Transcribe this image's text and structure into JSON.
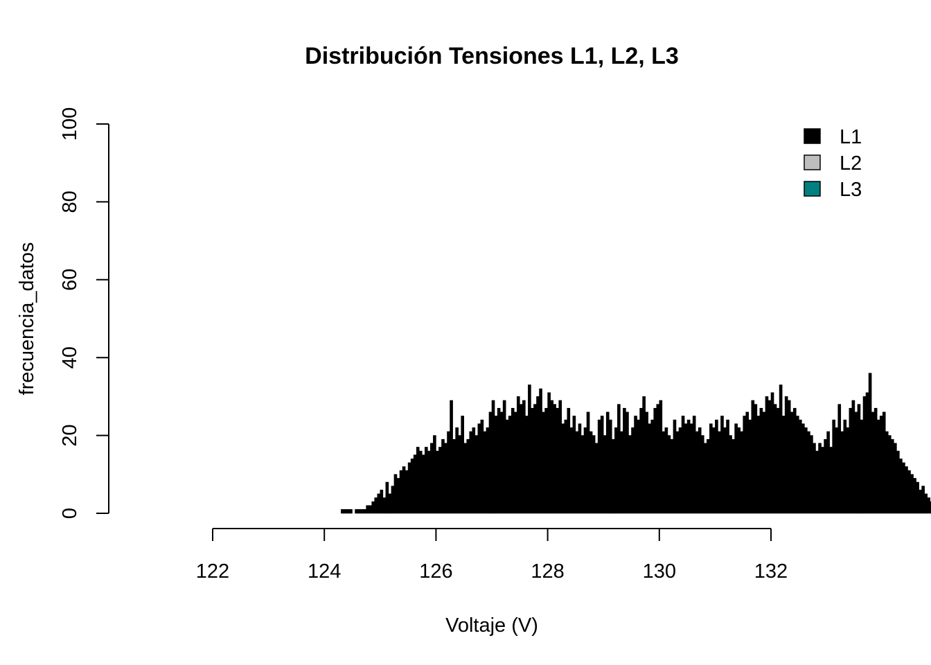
{
  "chart_data": {
    "type": "bar",
    "title": "Distribución Tensiones L1, L2, L3",
    "xlabel": "Voltaje (V)",
    "ylabel": "frecuencia_datos",
    "xlim": [
      122,
      132
    ],
    "ylim": [
      0,
      100
    ],
    "x_ticks": [
      "122",
      "124",
      "126",
      "128",
      "130",
      "132"
    ],
    "y_ticks": [
      "0",
      "20",
      "40",
      "60",
      "80",
      "100"
    ],
    "bin_width": 0.05,
    "grid": false,
    "legend_position": "top-right",
    "legend": [
      {
        "label": "L1",
        "color": "#000000"
      },
      {
        "label": "L2",
        "color": "#bebebe"
      },
      {
        "label": "L3",
        "color": "#008080"
      }
    ],
    "series": [
      {
        "name": "L1",
        "color": "#000000",
        "x_start": 124.3,
        "values": [
          1,
          1,
          1,
          1,
          0,
          1,
          1,
          1,
          1,
          2,
          2,
          3,
          4,
          5,
          6,
          4,
          8,
          5,
          7,
          10,
          9,
          11,
          12,
          11,
          13,
          14,
          15,
          17,
          16,
          15,
          17,
          16,
          18,
          20,
          16,
          17,
          19,
          18,
          21,
          29,
          19,
          22,
          20,
          25,
          18,
          19,
          21,
          22,
          20,
          23,
          24,
          21,
          22,
          26,
          29,
          25,
          27,
          26,
          29,
          24,
          25,
          27,
          26,
          30,
          28,
          29,
          25,
          33,
          27,
          28,
          30,
          32,
          26,
          27,
          31,
          29,
          28,
          27,
          29,
          23,
          24,
          27,
          22,
          25,
          21,
          23,
          20,
          22,
          26,
          21,
          20,
          18,
          24,
          25,
          20,
          26,
          24,
          19,
          22,
          28,
          21,
          27,
          26,
          20,
          22,
          25,
          24,
          27,
          30,
          26,
          23,
          24,
          27,
          28,
          29,
          21,
          22,
          20,
          19,
          24,
          21,
          22,
          25,
          23,
          24,
          23,
          25,
          21,
          22,
          20,
          18,
          19,
          23,
          22,
          24,
          21,
          25,
          22,
          24,
          20,
          19,
          23,
          22,
          21,
          25,
          26,
          24,
          29,
          28,
          25,
          27,
          26,
          30,
          29,
          31,
          28,
          27,
          33,
          25,
          30,
          29,
          26,
          27,
          25,
          24,
          23,
          22,
          21,
          20,
          18,
          16,
          18,
          17,
          19,
          21,
          17,
          24,
          22,
          28,
          21,
          24,
          22,
          27,
          29,
          26,
          28,
          24,
          30,
          31,
          36,
          26,
          27,
          24,
          25,
          26,
          21,
          20,
          19,
          18,
          16,
          14,
          13,
          12,
          11,
          10,
          9,
          8,
          6,
          7,
          5,
          4,
          3,
          2,
          2,
          1,
          1,
          0,
          0,
          1
        ]
      }
    ]
  }
}
